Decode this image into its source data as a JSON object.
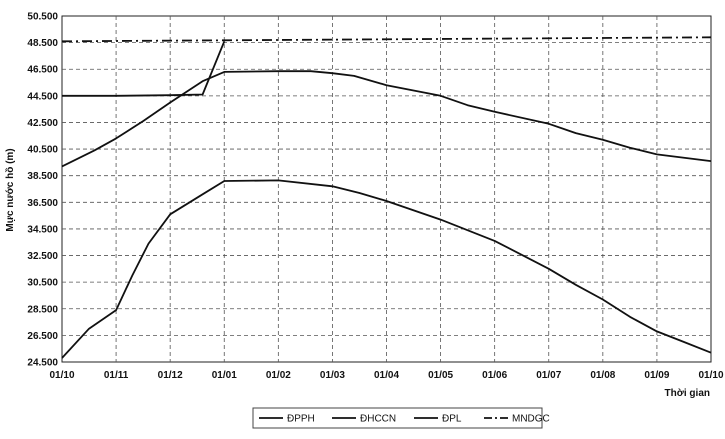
{
  "chart_data": {
    "type": "line",
    "title": "",
    "xlabel": "Thời gian",
    "ylabel": "Mực nước hồ (m)",
    "ylim": [
      24.5,
      50.5
    ],
    "yticks": [
      "24.500",
      "26.500",
      "28.500",
      "30.500",
      "32.500",
      "34.500",
      "36.500",
      "38.500",
      "40.500",
      "42.500",
      "44.500",
      "46.500",
      "48.500",
      "50.500"
    ],
    "xticks": [
      "01/10",
      "01/11",
      "01/12",
      "01/01",
      "01/02",
      "01/03",
      "01/04",
      "01/05",
      "01/06",
      "01/07",
      "01/08",
      "01/09",
      "01/10"
    ],
    "grid": true,
    "legend": "bottom",
    "series": [
      {
        "name": "ĐPPH",
        "style": "solid",
        "points": [
          [
            0,
            44.5
          ],
          [
            1,
            44.5
          ],
          [
            2,
            44.55
          ],
          [
            2.6,
            44.6
          ],
          [
            3,
            48.6
          ]
        ]
      },
      {
        "name": "ĐHCCN",
        "style": "solid",
        "points": [
          [
            0,
            39.2
          ],
          [
            0.6,
            40.4
          ],
          [
            1,
            41.3
          ],
          [
            1.5,
            42.6
          ],
          [
            2,
            44.0
          ],
          [
            2.6,
            45.6
          ],
          [
            3,
            46.3
          ],
          [
            4,
            46.35
          ],
          [
            4.6,
            46.35
          ],
          [
            5,
            46.2
          ],
          [
            5.4,
            46.0
          ],
          [
            6,
            45.3
          ],
          [
            7,
            44.5
          ],
          [
            7.5,
            43.8
          ],
          [
            8,
            43.3
          ],
          [
            9,
            42.4
          ],
          [
            9.5,
            41.7
          ],
          [
            10,
            41.2
          ],
          [
            10.5,
            40.6
          ],
          [
            11,
            40.1
          ],
          [
            12,
            39.6
          ]
        ]
      },
      {
        "name": "ĐPL",
        "style": "solid",
        "points": [
          [
            0,
            24.8
          ],
          [
            0.5,
            27.0
          ],
          [
            1,
            28.4
          ],
          [
            1.3,
            31.0
          ],
          [
            1.6,
            33.4
          ],
          [
            2,
            35.6
          ],
          [
            2.6,
            37.1
          ],
          [
            3,
            38.1
          ],
          [
            4,
            38.15
          ],
          [
            5,
            37.7
          ],
          [
            5.5,
            37.2
          ],
          [
            6,
            36.6
          ],
          [
            7,
            35.2
          ],
          [
            8,
            33.6
          ],
          [
            9,
            31.5
          ],
          [
            9.5,
            30.3
          ],
          [
            10,
            29.2
          ],
          [
            10.5,
            27.9
          ],
          [
            11,
            26.8
          ],
          [
            11.5,
            26.0
          ],
          [
            12,
            25.2
          ]
        ]
      },
      {
        "name": "MNDGC",
        "style": "dashdot",
        "points": [
          [
            0,
            48.6
          ],
          [
            12,
            48.9
          ]
        ]
      }
    ]
  }
}
